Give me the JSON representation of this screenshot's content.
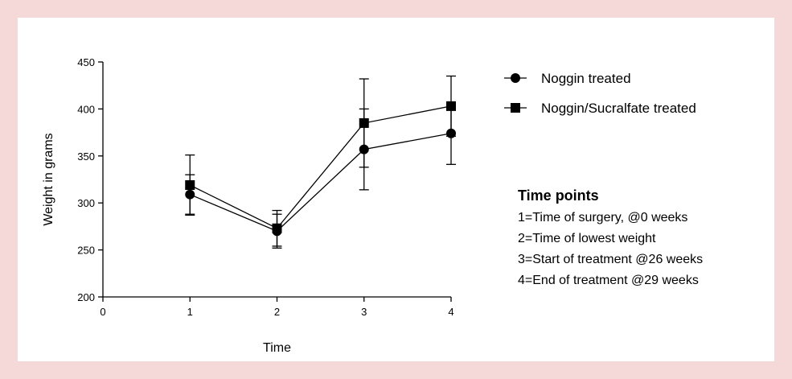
{
  "chart_data": {
    "type": "line",
    "xlabel": "Time",
    "ylabel": "Weight in grams",
    "xlim": [
      0,
      4
    ],
    "ylim": [
      200,
      450
    ],
    "x_ticks": [
      "0",
      "1",
      "2",
      "3",
      "4"
    ],
    "y_ticks": [
      "200",
      "250",
      "300",
      "350",
      "400",
      "450"
    ],
    "x": [
      1,
      2,
      3,
      4
    ],
    "series": [
      {
        "name": "Noggin treated",
        "marker": "circle",
        "values": [
          309,
          270,
          357,
          374
        ],
        "error": [
          21,
          18,
          43,
          33
        ]
      },
      {
        "name": "Noggin/Sucralfate treated",
        "marker": "square",
        "values": [
          319,
          273,
          385,
          403
        ],
        "error": [
          32,
          19,
          47,
          32
        ]
      }
    ],
    "legend_position": "top-right",
    "grid": false
  },
  "notes": {
    "title": "Time points",
    "lines": [
      "1=Time of surgery, @0 weeks",
      "2=Time of lowest weight",
      "3=Start of treatment @26 weeks",
      "4=End of treatment @29 weeks"
    ]
  },
  "colors": {
    "background": "#f5d8d8",
    "panel": "#ffffff",
    "ink": "#000000"
  }
}
